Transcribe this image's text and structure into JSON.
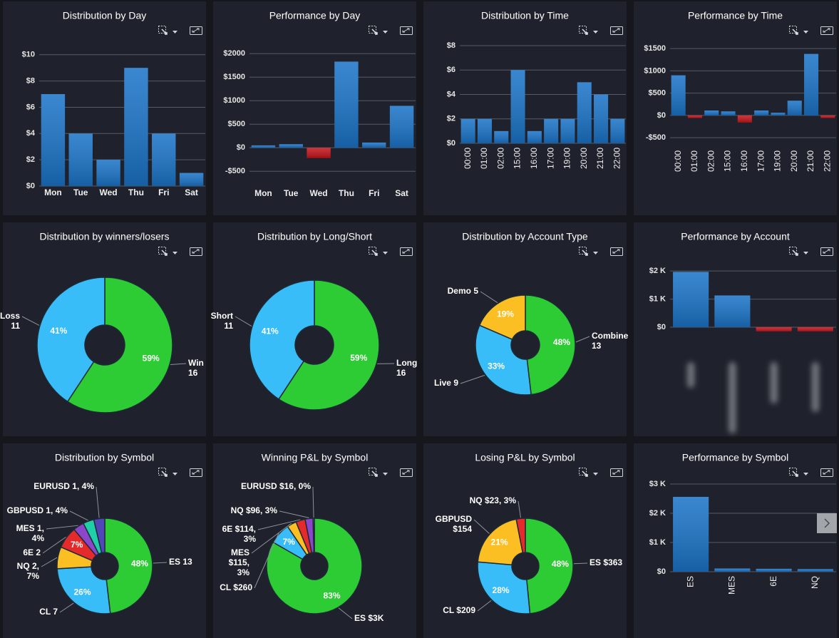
{
  "chart_data": [
    {
      "type": "bar",
      "title": "Distribution by Day",
      "categories": [
        "Mon",
        "Tue",
        "Wed",
        "Thu",
        "Fri",
        "Sat"
      ],
      "values": [
        7,
        4,
        2,
        9,
        4,
        1
      ],
      "color": "#1b74c8",
      "ylim": [
        0,
        10.8
      ],
      "yticks": [
        {
          "value": 0,
          "label": "$0"
        },
        {
          "value": 2,
          "label": "$2"
        },
        {
          "value": 4,
          "label": "$4"
        },
        {
          "value": 6,
          "label": "$6"
        },
        {
          "value": 8,
          "label": "$8"
        },
        {
          "value": 10,
          "label": "$10"
        }
      ],
      "grid": true
    },
    {
      "type": "bar",
      "title": "Performance by Day",
      "categories": [
        "Mon",
        "Tue",
        "Wed",
        "Thu",
        "Fri",
        "Sat"
      ],
      "values": [
        50,
        75,
        -220,
        1830,
        110,
        890
      ],
      "color": "#1b74c8",
      "negative_color": "#c3161c",
      "ylim": [
        -830,
        2200
      ],
      "yticks": [
        {
          "value": -500,
          "label": "-$500"
        },
        {
          "value": 0,
          "label": "$0"
        },
        {
          "value": 500,
          "label": "$500"
        },
        {
          "value": 1000,
          "label": "$1000"
        },
        {
          "value": 1500,
          "label": "$1500"
        },
        {
          "value": 2000,
          "label": "$2000"
        }
      ],
      "grid": true
    },
    {
      "type": "bar",
      "title": "Distribution by Time",
      "categories": [
        "00:00",
        "01:00",
        "02:00",
        "15:00",
        "16:00",
        "17:00",
        "19:00",
        "20:00",
        "21:00",
        "22:00"
      ],
      "values": [
        2,
        2,
        1,
        6,
        1,
        2,
        2,
        5,
        4,
        2
      ],
      "color": "#1b74c8",
      "ylim": [
        0,
        8
      ],
      "yticks": [
        {
          "value": 0,
          "label": "$0"
        },
        {
          "value": 2,
          "label": "$2"
        },
        {
          "value": 4,
          "label": "$4"
        },
        {
          "value": 6,
          "label": "$6"
        },
        {
          "value": 8,
          "label": "$8"
        }
      ],
      "grid": true,
      "xtick_rotation": -90
    },
    {
      "type": "bar",
      "title": "Performance by Time",
      "categories": [
        "00:00",
        "01:00",
        "02:00",
        "15:00",
        "16:00",
        "17:00",
        "19:00",
        "20:00",
        "21:00",
        "22:00"
      ],
      "values": [
        900,
        -60,
        110,
        90,
        -160,
        110,
        60,
        330,
        1380,
        -60
      ],
      "color": "#1b74c8",
      "negative_color": "#c3161c",
      "ylim": [
        -690,
        1630
      ],
      "yticks": [
        {
          "value": -500,
          "label": "-$500"
        },
        {
          "value": 0,
          "label": "$0"
        },
        {
          "value": 500,
          "label": "$500"
        },
        {
          "value": 1000,
          "label": "$1000"
        },
        {
          "value": 1500,
          "label": "$1500"
        }
      ],
      "grid": true,
      "xtick_rotation": -90
    },
    {
      "type": "pie",
      "title": "Distribution by winners/losers",
      "labels": [
        [
          "Win",
          "16"
        ],
        [
          "Loss",
          "11"
        ]
      ],
      "values": [
        16,
        11
      ],
      "percent_labels": [
        "59%",
        "41%"
      ],
      "colors": [
        "#2ecc34",
        "#38bdf8"
      ]
    },
    {
      "type": "pie",
      "title": "Distribution by Long/Short",
      "labels": [
        [
          "Long",
          "16"
        ],
        [
          "Short",
          "11"
        ]
      ],
      "values": [
        16,
        11
      ],
      "percent_labels": [
        "59%",
        "41%"
      ],
      "colors": [
        "#2ecc34",
        "#38bdf8"
      ]
    },
    {
      "type": "pie",
      "title": "Distribution by Account Type",
      "labels": [
        [
          "Combine",
          "13"
        ],
        [
          "Live 9"
        ],
        [
          "Demo 5"
        ]
      ],
      "values": [
        13,
        9,
        5
      ],
      "percent_labels": [
        "48%",
        "33%",
        "19%"
      ],
      "colors": [
        "#2ecc34",
        "#38bdf8",
        "#fbbf24"
      ]
    },
    {
      "type": "bar",
      "title": "Performance by Account",
      "categories": [
        null,
        null,
        null,
        null
      ],
      "values": [
        1970,
        1130,
        -150,
        -150
      ],
      "color": "#1b74c8",
      "negative_color": "#c3161c",
      "ylim": [
        -280,
        2360
      ],
      "yticks": [
        {
          "value": 0,
          "label": "$0"
        },
        {
          "value": 1000,
          "label": "$1 K"
        },
        {
          "value": 2000,
          "label": "$2 K"
        }
      ],
      "grid": true
    },
    {
      "type": "pie",
      "title": "Distribution by Symbol",
      "labels": [
        [
          "ES 13"
        ],
        [
          "CL 7"
        ],
        [
          "NQ 2,",
          "7%"
        ],
        [
          "6E 2"
        ],
        [
          "MES 1,",
          "4%"
        ],
        [
          "GBPUSD 1, 4%"
        ],
        [
          "EURUSD 1, 4%"
        ]
      ],
      "values": [
        13,
        7,
        2,
        2,
        1,
        1,
        1
      ],
      "percent_labels": [
        "48%",
        "26%",
        null,
        "7%",
        null,
        null,
        null
      ],
      "colors": [
        "#2ecc34",
        "#38bdf8",
        "#fbbf24",
        "#e42a2a",
        "#8b46c9",
        "#1ecfa8",
        "#5146b8"
      ]
    },
    {
      "type": "pie",
      "title": "Winning P&L by Symbol",
      "labels": [
        [
          "ES $3K"
        ],
        [
          "CL $260"
        ],
        [
          "MES",
          "$115,",
          "3%"
        ],
        [
          "6E $114,",
          "3%"
        ],
        [
          "NQ $96, 3%"
        ],
        [
          "EURUSD $16, 0%"
        ]
      ],
      "values": [
        3000,
        260,
        115,
        114,
        96,
        16
      ],
      "percent_labels": [
        "83%",
        "7%",
        null,
        null,
        null,
        null
      ],
      "colors": [
        "#2ecc34",
        "#38bdf8",
        "#fbbf24",
        "#e42a2a",
        "#8b46c9",
        "#1ecfa8"
      ]
    },
    {
      "type": "pie",
      "title": "Losing P&L by Symbol",
      "labels": [
        [
          "ES $363"
        ],
        [
          "CL $209"
        ],
        [
          "GBPUSD",
          "$154"
        ],
        [
          "NQ $23, 3%"
        ]
      ],
      "values": [
        363,
        209,
        154,
        23
      ],
      "percent_labels": [
        "48%",
        "28%",
        "21%",
        null
      ],
      "colors": [
        "#2ecc34",
        "#38bdf8",
        "#fbbf24",
        "#e42a2a"
      ]
    },
    {
      "type": "bar",
      "title": "Performance by Symbol",
      "categories": [
        "ES",
        "MES",
        "6E",
        "NQ"
      ],
      "values": [
        2560,
        110,
        100,
        90
      ],
      "color": "#1b74c8",
      "ylim": [
        0,
        3340
      ],
      "yticks": [
        {
          "value": 0,
          "label": "$0"
        },
        {
          "value": 1000,
          "label": "$1 K"
        },
        {
          "value": 2000,
          "label": "$2 K"
        },
        {
          "value": 3000,
          "label": "$3 K"
        }
      ],
      "grid": true,
      "xtick_rotation": -90
    }
  ]
}
